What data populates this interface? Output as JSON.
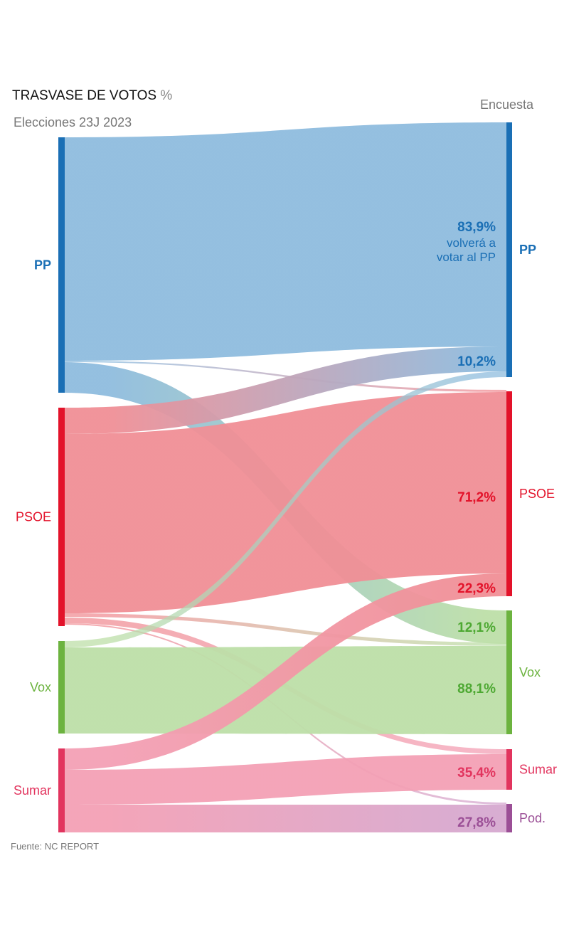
{
  "header": {
    "title": "TRASVASE DE VOTOS",
    "title_unit": "%",
    "left_column": "Elecciones 23J 2023",
    "right_column": "Encuesta"
  },
  "footer": {
    "source": "Fuente: NC REPORT"
  },
  "chart_data": {
    "type": "sankey",
    "unit": "%",
    "source_nodes": [
      {
        "id": "PP",
        "label": "PP",
        "color": "#1a6fb5"
      },
      {
        "id": "PSOE",
        "label": "PSOE",
        "color": "#e3122a"
      },
      {
        "id": "Vox",
        "label": "Vox",
        "color": "#6cb33f"
      },
      {
        "id": "Sumar",
        "label": "Sumar",
        "color": "#e2345e"
      }
    ],
    "target_nodes": [
      {
        "id": "PP",
        "label": "PP",
        "color": "#1a6fb5"
      },
      {
        "id": "PSOE",
        "label": "PSOE",
        "color": "#e3122a"
      },
      {
        "id": "Vox",
        "label": "Vox",
        "color": "#6cb33f"
      },
      {
        "id": "Sumar",
        "label": "Sumar",
        "color": "#e2345e"
      },
      {
        "id": "Pod",
        "label": "Pod.",
        "color": "#9b4f96"
      }
    ],
    "flows": [
      {
        "from": "PP",
        "to": "PP",
        "value": 83.9,
        "label": "83,9%",
        "note": [
          "volverá a",
          "votar al PP"
        ]
      },
      {
        "from": "PP",
        "to": "PSOE",
        "value": null,
        "label": ""
      },
      {
        "from": "PP",
        "to": "Vox",
        "value": 12.1,
        "label": "12,1%"
      },
      {
        "from": "PSOE",
        "to": "PP",
        "value": 10.2,
        "label": "10,2%"
      },
      {
        "from": "PSOE",
        "to": "PSOE",
        "value": 71.2,
        "label": "71,2%"
      },
      {
        "from": "PSOE",
        "to": "Vox",
        "value": null,
        "label": ""
      },
      {
        "from": "PSOE",
        "to": "Sumar",
        "value": null,
        "label": ""
      },
      {
        "from": "PSOE",
        "to": "Pod",
        "value": null,
        "label": ""
      },
      {
        "from": "Vox",
        "to": "PP",
        "value": null,
        "label": ""
      },
      {
        "from": "Vox",
        "to": "Vox",
        "value": 88.1,
        "label": "88,1%"
      },
      {
        "from": "Sumar",
        "to": "PSOE",
        "value": 22.3,
        "label": "22,3%"
      },
      {
        "from": "Sumar",
        "to": "Sumar",
        "value": 35.4,
        "label": "35,4%"
      },
      {
        "from": "Sumar",
        "to": "Pod",
        "value": 27.8,
        "label": "27,8%"
      }
    ],
    "flow_colors": {
      "PP": "#8fbcde",
      "PSOE": "#f08f96",
      "Vox": "#bddfa8",
      "Sumar": "#f3a0b5",
      "Pod": "#d6a9d0"
    }
  }
}
